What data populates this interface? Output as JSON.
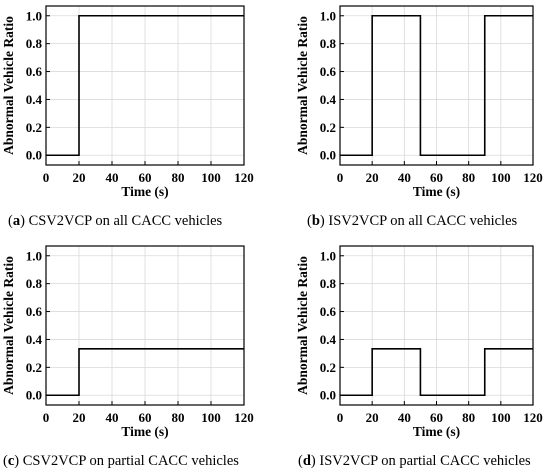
{
  "chart_data": [
    {
      "type": "line",
      "panel": "a",
      "caption_letter": "a",
      "caption_text": "CSV2VCP on all CACC vehicles",
      "xlabel": "Time (s)",
      "ylabel": "Abnormal Vehicle Ratio",
      "xlim": [
        0,
        120
      ],
      "ylim": [
        -0.07,
        1.07
      ],
      "xticks": [
        0,
        20,
        40,
        60,
        80,
        100,
        120
      ],
      "yticks": [
        "0.0",
        "0.2",
        "0.4",
        "0.6",
        "0.8",
        "1.0"
      ],
      "grid": true,
      "series": [
        {
          "x": [
            0,
            20,
            20,
            120
          ],
          "y": [
            0,
            0,
            1,
            1
          ]
        }
      ]
    },
    {
      "type": "line",
      "panel": "b",
      "caption_letter": "b",
      "caption_text": "ISV2VCP on all CACC vehicles",
      "xlabel": "Time (s)",
      "ylabel": "Abnormal Vehicle Ratio",
      "xlim": [
        0,
        120
      ],
      "ylim": [
        -0.07,
        1.07
      ],
      "xticks": [
        0,
        20,
        40,
        60,
        80,
        100,
        120
      ],
      "yticks": [
        "0.0",
        "0.2",
        "0.4",
        "0.6",
        "0.8",
        "1.0"
      ],
      "grid": true,
      "series": [
        {
          "x": [
            0,
            20,
            20,
            50,
            50,
            90,
            90,
            120
          ],
          "y": [
            0,
            0,
            1,
            1,
            0,
            0,
            1,
            1
          ]
        }
      ]
    },
    {
      "type": "line",
      "panel": "c",
      "caption_letter": "c",
      "caption_text": "CSV2VCP on partial CACC vehicles",
      "xlabel": "Time (s)",
      "ylabel": "Abnormal Vehicle Ratio",
      "xlim": [
        0,
        120
      ],
      "ylim": [
        -0.07,
        1.07
      ],
      "xticks": [
        0,
        20,
        40,
        60,
        80,
        100,
        120
      ],
      "yticks": [
        "0.0",
        "0.2",
        "0.4",
        "0.6",
        "0.8",
        "1.0"
      ],
      "grid": true,
      "series": [
        {
          "x": [
            0,
            20,
            20,
            120
          ],
          "y": [
            0,
            0,
            0.333,
            0.333
          ]
        }
      ]
    },
    {
      "type": "line",
      "panel": "d",
      "caption_letter": "d",
      "caption_text": "ISV2VCP on partial CACC vehicles",
      "xlabel": "Time (s)",
      "ylabel": "Abnormal Vehicle Ratio",
      "xlim": [
        0,
        120
      ],
      "ylim": [
        -0.07,
        1.07
      ],
      "xticks": [
        0,
        20,
        40,
        60,
        80,
        100,
        120
      ],
      "yticks": [
        "0.0",
        "0.2",
        "0.4",
        "0.6",
        "0.8",
        "1.0"
      ],
      "grid": true,
      "series": [
        {
          "x": [
            0,
            20,
            20,
            50,
            50,
            90,
            90,
            120
          ],
          "y": [
            0,
            0,
            0.333,
            0.333,
            0,
            0,
            0.333,
            0.333
          ]
        }
      ]
    }
  ],
  "colors": {
    "line": "#000000",
    "axis": "#000000",
    "grid": "#d9d9d9",
    "background": "#ffffff"
  }
}
